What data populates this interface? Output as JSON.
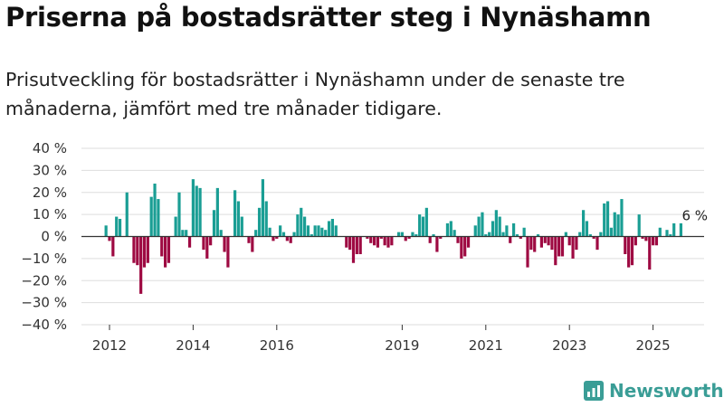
{
  "header": {
    "title": "Priserna på bostadsrätter steg i Nynäshamn",
    "subtitle": "Prisutveckling för bostadsrätter i Nynäshamn under de senaste tre månaderna, jämfört med tre månader tidigare."
  },
  "brand": {
    "name": "Newsworthy",
    "icon": "newsworthy-logo-icon"
  },
  "colors": {
    "positive": "#1a9e94",
    "negative": "#9e0a42",
    "zero_line": "#333333",
    "grid": "#dddddd"
  },
  "chart_data": {
    "type": "bar",
    "ylim": [
      -40,
      40
    ],
    "y_ticks": [
      40,
      30,
      20,
      10,
      0,
      -10,
      -20,
      -30,
      -40
    ],
    "y_tick_labels": [
      "40 %",
      "30 %",
      "20 %",
      "10 %",
      "0 %",
      "−10 %",
      "−20 %",
      "−30 %",
      "−40 %"
    ],
    "x_ticks": [
      {
        "label": "2012",
        "month_index": 0
      },
      {
        "label": "2014",
        "month_index": 24
      },
      {
        "label": "2016",
        "month_index": 48
      },
      {
        "label": "2019",
        "month_index": 84
      },
      {
        "label": "2021",
        "month_index": 108
      },
      {
        "label": "2023",
        "month_index": 132
      },
      {
        "label": "2025",
        "month_index": 156
      }
    ],
    "grid": true,
    "start_offset": -1,
    "values": [
      5,
      -2,
      -9,
      9,
      8,
      0,
      20,
      0,
      -12,
      -13,
      -26,
      -14,
      -12,
      18,
      24,
      17,
      -9,
      -14,
      -12,
      0,
      9,
      20,
      3,
      3,
      -5,
      26,
      23,
      22,
      -6,
      -10,
      -4,
      12,
      22,
      3,
      -7,
      -14,
      0,
      21,
      16,
      9,
      0,
      -3,
      -7,
      3,
      13,
      26,
      16,
      4,
      -2,
      -1,
      5,
      2,
      -2,
      -3,
      2,
      10,
      13,
      9,
      5,
      1,
      5,
      5,
      4,
      3,
      7,
      8,
      5,
      0,
      0,
      -5,
      -6,
      -12,
      -8,
      -8,
      0,
      -1,
      -3,
      -4,
      -5,
      -1,
      -4,
      -5,
      -4,
      0,
      2,
      2,
      -2,
      -1,
      2,
      1,
      10,
      9,
      13,
      -3,
      1,
      -7,
      -1,
      0,
      6,
      7,
      3,
      -3,
      -10,
      -9,
      -5,
      0,
      5,
      9,
      11,
      1,
      2,
      7,
      12,
      9,
      2,
      5,
      -3,
      6,
      1,
      -1,
      4,
      -14,
      -6,
      -7,
      1,
      -5,
      -3,
      -4,
      -6,
      -13,
      -9,
      -9,
      2,
      -4,
      -10,
      -6,
      2,
      12,
      7,
      1,
      -1,
      -6,
      2,
      15,
      16,
      4,
      11,
      10,
      17,
      -8,
      -14,
      -13,
      -4,
      10,
      -1,
      -2,
      -15,
      -4,
      -4,
      4,
      0,
      3,
      1,
      6,
      0,
      6
    ],
    "annotations": [
      {
        "text": "6 %",
        "month_index": 168
      }
    ]
  }
}
